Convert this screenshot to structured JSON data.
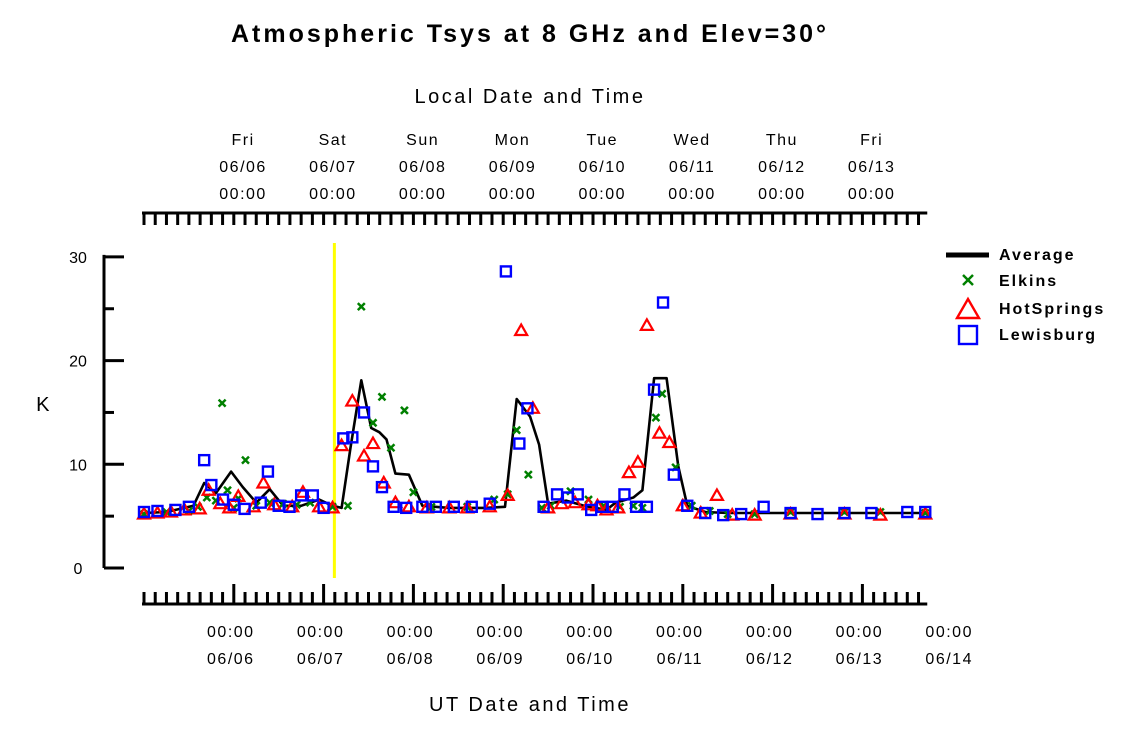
{
  "chart_data": {
    "type": "scatter",
    "title": "Atmospheric Tsys at 8 GHz and Elev=30°",
    "xlabel": "UT Date and Time",
    "x2label": "Local Date and Time",
    "ylabel": "K",
    "ylim": [
      0,
      30
    ],
    "yticks": [
      "0",
      "10",
      "20",
      "30"
    ],
    "x_ticks": [
      {
        "time": "00:00",
        "date": "06/06",
        "day": 1
      },
      {
        "time": "00:00",
        "date": "06/07",
        "day": 2
      },
      {
        "time": "00:00",
        "date": "06/08",
        "day": 3
      },
      {
        "time": "00:00",
        "date": "06/09",
        "day": 4
      },
      {
        "time": "00:00",
        "date": "06/10",
        "day": 5
      },
      {
        "time": "00:00",
        "date": "06/11",
        "day": 6
      },
      {
        "time": "00:00",
        "date": "06/12",
        "day": 7
      },
      {
        "time": "00:00",
        "date": "06/13",
        "day": 8
      },
      {
        "time": "00:00",
        "date": "06/14",
        "day": 9
      }
    ],
    "x2_ticks": [
      {
        "weekday": "Fri",
        "date": "06/06",
        "time": "00:00",
        "day": 1.17
      },
      {
        "weekday": "Sat",
        "date": "06/07",
        "time": "00:00",
        "day": 2.17
      },
      {
        "weekday": "Sun",
        "date": "06/08",
        "time": "00:00",
        "day": 3.17
      },
      {
        "weekday": "Mon",
        "date": "06/09",
        "time": "00:00",
        "day": 4.17
      },
      {
        "weekday": "Tue",
        "date": "06/10",
        "time": "00:00",
        "day": 5.17
      },
      {
        "weekday": "Wed",
        "date": "06/11",
        "time": "00:00",
        "day": 6.17
      },
      {
        "weekday": "Thu",
        "date": "06/12",
        "time": "00:00",
        "day": 7.17
      },
      {
        "weekday": "Fri",
        "date": "06/13",
        "time": "00:00",
        "day": 8.17
      }
    ],
    "marker_day": 2.12,
    "marker_color": "#ffff00",
    "series": [
      {
        "name": "Average",
        "style": "line",
        "color": "#000000",
        "points": [
          [
            0.0,
            5.3
          ],
          [
            0.25,
            5.4
          ],
          [
            0.4,
            5.7
          ],
          [
            0.55,
            6.0
          ],
          [
            0.67,
            8.2
          ],
          [
            0.8,
            7.2
          ],
          [
            0.97,
            9.3
          ],
          [
            1.1,
            7.8
          ],
          [
            1.25,
            6.3
          ],
          [
            1.4,
            7.6
          ],
          [
            1.55,
            6.0
          ],
          [
            1.75,
            6.0
          ],
          [
            1.95,
            6.6
          ],
          [
            2.1,
            6.0
          ],
          [
            2.2,
            5.8
          ],
          [
            2.3,
            11.6
          ],
          [
            2.42,
            18.1
          ],
          [
            2.53,
            13.5
          ],
          [
            2.62,
            13.1
          ],
          [
            2.7,
            12.4
          ],
          [
            2.8,
            9.1
          ],
          [
            2.95,
            9.0
          ],
          [
            3.1,
            6.0
          ],
          [
            3.4,
            5.8
          ],
          [
            3.8,
            5.8
          ],
          [
            4.02,
            5.9
          ],
          [
            4.15,
            16.3
          ],
          [
            4.3,
            14.6
          ],
          [
            4.4,
            11.9
          ],
          [
            4.5,
            6.2
          ],
          [
            4.7,
            6.5
          ],
          [
            4.9,
            6.0
          ],
          [
            5.15,
            5.6
          ],
          [
            5.25,
            6.3
          ],
          [
            5.45,
            6.8
          ],
          [
            5.55,
            7.5
          ],
          [
            5.68,
            18.3
          ],
          [
            5.82,
            18.3
          ],
          [
            5.95,
            9.8
          ],
          [
            6.05,
            6.0
          ],
          [
            6.25,
            5.4
          ],
          [
            6.5,
            5.3
          ],
          [
            7.0,
            5.3
          ],
          [
            8.0,
            5.3
          ],
          [
            8.7,
            5.3
          ]
        ]
      },
      {
        "name": "Elkins",
        "style": "x",
        "color": "#008000",
        "points": [
          [
            0.0,
            5.2
          ],
          [
            0.25,
            5.4
          ],
          [
            0.5,
            5.5
          ],
          [
            0.6,
            5.9
          ],
          [
            0.7,
            6.8
          ],
          [
            0.8,
            6.5
          ],
          [
            0.87,
            15.9
          ],
          [
            0.93,
            7.5
          ],
          [
            1.0,
            5.8
          ],
          [
            1.05,
            6.7
          ],
          [
            1.13,
            10.4
          ],
          [
            1.25,
            6.0
          ],
          [
            1.4,
            6.3
          ],
          [
            1.55,
            6.2
          ],
          [
            1.7,
            6.1
          ],
          [
            1.85,
            6.3
          ],
          [
            2.1,
            5.9
          ],
          [
            2.27,
            6.0
          ],
          [
            2.42,
            25.2
          ],
          [
            2.55,
            14.0
          ],
          [
            2.65,
            16.5
          ],
          [
            2.75,
            11.6
          ],
          [
            2.9,
            15.2
          ],
          [
            3.0,
            7.3
          ],
          [
            3.2,
            5.9
          ],
          [
            3.6,
            5.9
          ],
          [
            3.9,
            6.6
          ],
          [
            4.05,
            7.1
          ],
          [
            4.15,
            13.3
          ],
          [
            4.28,
            9.0
          ],
          [
            4.43,
            5.8
          ],
          [
            4.53,
            6.0
          ],
          [
            4.75,
            7.4
          ],
          [
            4.95,
            6.6
          ],
          [
            5.12,
            6.0
          ],
          [
            5.3,
            5.9
          ],
          [
            5.45,
            6.0
          ],
          [
            5.55,
            5.8
          ],
          [
            5.7,
            14.5
          ],
          [
            5.77,
            16.8
          ],
          [
            5.92,
            9.7
          ],
          [
            6.1,
            6.0
          ],
          [
            6.3,
            5.5
          ],
          [
            6.5,
            5.2
          ],
          [
            6.8,
            5.2
          ],
          [
            7.2,
            5.4
          ],
          [
            7.8,
            5.4
          ],
          [
            8.2,
            5.4
          ],
          [
            8.7,
            5.3
          ]
        ]
      },
      {
        "name": "HotSprings",
        "style": "triangle",
        "color": "#ff0000",
        "points": [
          [
            0.0,
            5.2
          ],
          [
            0.15,
            5.3
          ],
          [
            0.3,
            5.4
          ],
          [
            0.45,
            5.6
          ],
          [
            0.62,
            5.7
          ],
          [
            0.72,
            7.5
          ],
          [
            0.85,
            6.2
          ],
          [
            0.95,
            5.8
          ],
          [
            1.05,
            6.9
          ],
          [
            1.22,
            5.9
          ],
          [
            1.33,
            8.2
          ],
          [
            1.45,
            6.1
          ],
          [
            1.65,
            5.9
          ],
          [
            1.77,
            7.3
          ],
          [
            1.95,
            5.9
          ],
          [
            2.1,
            5.8
          ],
          [
            2.2,
            11.8
          ],
          [
            2.32,
            16.1
          ],
          [
            2.45,
            10.8
          ],
          [
            2.55,
            12.0
          ],
          [
            2.67,
            8.2
          ],
          [
            2.8,
            6.3
          ],
          [
            2.95,
            5.9
          ],
          [
            3.15,
            5.8
          ],
          [
            3.4,
            5.8
          ],
          [
            3.6,
            5.8
          ],
          [
            3.85,
            5.9
          ],
          [
            4.05,
            7.0
          ],
          [
            4.2,
            22.9
          ],
          [
            4.33,
            15.4
          ],
          [
            4.5,
            5.8
          ],
          [
            4.65,
            6.2
          ],
          [
            4.8,
            6.3
          ],
          [
            4.95,
            6.1
          ],
          [
            5.05,
            6.0
          ],
          [
            5.15,
            5.6
          ],
          [
            5.28,
            5.8
          ],
          [
            5.4,
            9.2
          ],
          [
            5.5,
            10.2
          ],
          [
            5.6,
            23.4
          ],
          [
            5.74,
            13.0
          ],
          [
            5.85,
            12.1
          ],
          [
            6.0,
            6.0
          ],
          [
            6.2,
            5.3
          ],
          [
            6.38,
            7.0
          ],
          [
            6.55,
            5.1
          ],
          [
            6.8,
            5.1
          ],
          [
            7.2,
            5.2
          ],
          [
            7.8,
            5.2
          ],
          [
            8.2,
            5.1
          ],
          [
            8.7,
            5.2
          ]
        ]
      },
      {
        "name": "Lewisburg",
        "style": "square",
        "color": "#0000ff",
        "points": [
          [
            0.0,
            5.4
          ],
          [
            0.15,
            5.5
          ],
          [
            0.35,
            5.6
          ],
          [
            0.5,
            5.9
          ],
          [
            0.67,
            10.4
          ],
          [
            0.75,
            8.0
          ],
          [
            0.88,
            6.6
          ],
          [
            1.0,
            6.1
          ],
          [
            1.12,
            5.7
          ],
          [
            1.3,
            6.3
          ],
          [
            1.38,
            9.3
          ],
          [
            1.5,
            6.0
          ],
          [
            1.62,
            5.9
          ],
          [
            1.75,
            7.0
          ],
          [
            1.88,
            7.0
          ],
          [
            2.0,
            5.8
          ],
          [
            2.22,
            12.5
          ],
          [
            2.32,
            12.6
          ],
          [
            2.45,
            15.0
          ],
          [
            2.55,
            9.8
          ],
          [
            2.65,
            7.8
          ],
          [
            2.78,
            5.9
          ],
          [
            2.92,
            5.8
          ],
          [
            3.1,
            5.9
          ],
          [
            3.25,
            5.9
          ],
          [
            3.45,
            5.9
          ],
          [
            3.65,
            5.9
          ],
          [
            3.85,
            6.2
          ],
          [
            4.03,
            28.6
          ],
          [
            4.18,
            12.0
          ],
          [
            4.27,
            15.4
          ],
          [
            4.45,
            5.9
          ],
          [
            4.6,
            7.1
          ],
          [
            4.72,
            6.8
          ],
          [
            4.83,
            7.1
          ],
          [
            4.98,
            5.6
          ],
          [
            5.1,
            5.9
          ],
          [
            5.22,
            5.9
          ],
          [
            5.35,
            7.1
          ],
          [
            5.48,
            5.9
          ],
          [
            5.6,
            5.9
          ],
          [
            5.68,
            17.2
          ],
          [
            5.78,
            25.6
          ],
          [
            5.9,
            9.0
          ],
          [
            6.05,
            6.0
          ],
          [
            6.25,
            5.3
          ],
          [
            6.45,
            5.1
          ],
          [
            6.65,
            5.2
          ],
          [
            6.9,
            5.9
          ],
          [
            7.2,
            5.3
          ],
          [
            7.5,
            5.2
          ],
          [
            7.8,
            5.3
          ],
          [
            8.1,
            5.3
          ],
          [
            8.5,
            5.4
          ],
          [
            8.7,
            5.4
          ]
        ]
      }
    ]
  }
}
